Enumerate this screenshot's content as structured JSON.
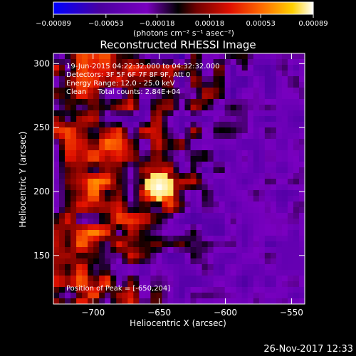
{
  "chart_data": {
    "type": "heatmap",
    "title": "Reconstructed RHESSI Image",
    "xlabel": "Heliocentric X (arcsec)",
    "ylabel": "Heliocentric Y (arcsec)",
    "xlim": [
      -730,
      -540
    ],
    "ylim": [
      112,
      308
    ],
    "x_ticks": [
      -700,
      -650,
      -600,
      -550
    ],
    "x_tick_labels": [
      "−700",
      "−650",
      "−600",
      "−550"
    ],
    "y_ticks": [
      150,
      200,
      250,
      300
    ],
    "y_tick_labels": [
      "150",
      "200",
      "250",
      "300"
    ],
    "colorbar": {
      "range": [
        -0.00089,
        0.00089
      ],
      "ticks": [
        -0.00089,
        -0.00053,
        -0.00018,
        0.00018,
        0.00053,
        0.00089
      ],
      "tick_labels": [
        "−0.00089",
        "−0.00053",
        "−0.00018",
        "0.00018",
        "0.00053",
        "0.00089"
      ],
      "units": "(photons cm⁻² s⁻¹ asec⁻²)",
      "colors": [
        "#0000ff",
        "#5a0090",
        "#7f00c0",
        "#000000",
        "#a00000",
        "#ff2000",
        "#ff8000",
        "#ffd000",
        "#ffffff"
      ]
    },
    "annotations": [
      "19-Jun-2015 04:22:32.000 to 04:32:32.000",
      "Detectors: 3F 5F 6F 7F 8F 9F, Att 0",
      "Energy Range: 12.0 - 25.0 keV",
      "Clean     Total counts: 2.84E+04"
    ],
    "peak_label": "Position of Peak = [-650,204]",
    "peak_position": [
      -650,
      204
    ]
  },
  "footer": {
    "timestamp": "26-Nov-2017 12:33"
  }
}
